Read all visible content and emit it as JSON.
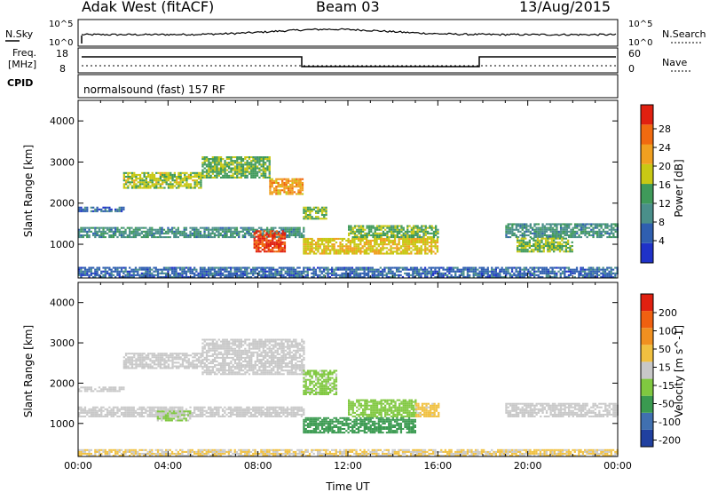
{
  "header": {
    "station": "Adak West (fitACF)",
    "beam": "Beam 03",
    "date": "13/Aug/2015"
  },
  "noise_panel": {
    "left_label": "N.Sky",
    "right_label": "N.Search",
    "left_ticks": [
      "10^5",
      "10^0"
    ],
    "right_ticks": [
      "10^5",
      "10^0"
    ]
  },
  "freq_panel": {
    "left_label_line1": "Freq.",
    "left_label_line2": "[MHz]",
    "left_ticks": [
      "18",
      "8"
    ],
    "right_label": "Nave",
    "right_ticks": [
      "60",
      "0"
    ]
  },
  "cpid": {
    "label": "CPID",
    "value": "normalsound (fast) 157 RF"
  },
  "colors": {
    "power_scale": [
      "#1f32c8",
      "#2f5fb0",
      "#4a8f8a",
      "#3f9a5a",
      "#c8c814",
      "#f0a020",
      "#f06a10",
      "#e02010"
    ],
    "velocity_scale": [
      "#2040a0",
      "#4070b0",
      "#3a9a50",
      "#80c840",
      "#c8c8c8",
      "#f0c040",
      "#f09020",
      "#f06010",
      "#e02010"
    ]
  },
  "chart_data": [
    {
      "type": "heatmap",
      "name": "power",
      "ylabel": "Slant Range [km]",
      "xlabel": "",
      "xlim": [
        0,
        24
      ],
      "ylim": [
        180,
        4500
      ],
      "y_ticks": [
        "1000",
        "2000",
        "3000",
        "4000"
      ],
      "colorbar_label": "Power [dB]",
      "colorbar_ticks": [
        "28",
        "24",
        "20",
        "16",
        "12",
        "8",
        "4"
      ],
      "colorbar_range": [
        0,
        30
      ],
      "echo_regions": [
        {
          "t0": 0.0,
          "t1": 10.0,
          "r0": 1150,
          "r1": 1400,
          "value": 10
        },
        {
          "t0": 0.0,
          "t1": 2.0,
          "r0": 1780,
          "r1": 1900,
          "value": 6
        },
        {
          "t0": 2.0,
          "t1": 5.5,
          "r0": 2350,
          "r1": 2750,
          "value": 16
        },
        {
          "t0": 5.5,
          "t1": 8.5,
          "r0": 2600,
          "r1": 3100,
          "value": 14
        },
        {
          "t0": 8.5,
          "t1": 10.0,
          "r0": 2200,
          "r1": 2600,
          "value": 21
        },
        {
          "t0": 7.8,
          "t1": 9.2,
          "r0": 800,
          "r1": 1300,
          "value": 27
        },
        {
          "t0": 10.0,
          "t1": 16.0,
          "r0": 750,
          "r1": 1150,
          "value": 18
        },
        {
          "t0": 12.0,
          "t1": 16.0,
          "r0": 1150,
          "r1": 1450,
          "value": 14
        },
        {
          "t0": 10.0,
          "t1": 11.0,
          "r0": 1600,
          "r1": 1900,
          "value": 15
        },
        {
          "t0": 19.0,
          "t1": 24.0,
          "r0": 1150,
          "r1": 1500,
          "value": 10
        },
        {
          "t0": 19.5,
          "t1": 22.0,
          "r0": 800,
          "r1": 1150,
          "value": 15
        },
        {
          "t0": 0.0,
          "t1": 24.0,
          "r0": 180,
          "r1": 450,
          "value": 6
        }
      ]
    },
    {
      "type": "heatmap",
      "name": "velocity",
      "ylabel": "Slant Range [km]",
      "xlabel": "Time UT",
      "xlim": [
        0,
        24
      ],
      "ylim": [
        180,
        4500
      ],
      "x_ticks": [
        "00:00",
        "04:00",
        "08:00",
        "12:00",
        "16:00",
        "20:00",
        "00:00"
      ],
      "y_ticks": [
        "1000",
        "2000",
        "3000",
        "4000"
      ],
      "colorbar_label": "Velocity [m s^-1]",
      "colorbar_ticks": [
        "200",
        "100",
        "50",
        "15",
        "-15",
        "-50",
        "-100",
        "-200"
      ],
      "colorbar_range": [
        -250,
        250
      ],
      "echo_regions": [
        {
          "t0": 0.0,
          "t1": 10.0,
          "r0": 1150,
          "r1": 1400,
          "value": 0
        },
        {
          "t0": 0.0,
          "t1": 2.0,
          "r0": 1780,
          "r1": 1900,
          "value": 0
        },
        {
          "t0": 2.0,
          "t1": 5.5,
          "r0": 2350,
          "r1": 2750,
          "value": 0
        },
        {
          "t0": 5.5,
          "t1": 10.0,
          "r0": 2200,
          "r1": 3100,
          "value": 0
        },
        {
          "t0": 3.5,
          "t1": 5.0,
          "r0": 1050,
          "r1": 1300,
          "value": -30
        },
        {
          "t0": 10.0,
          "t1": 15.0,
          "r0": 750,
          "r1": 1150,
          "value": -120
        },
        {
          "t0": 12.0,
          "t1": 15.0,
          "r0": 1150,
          "r1": 1600,
          "value": -60
        },
        {
          "t0": 15.0,
          "t1": 16.0,
          "r0": 1150,
          "r1": 1500,
          "value": 40
        },
        {
          "t0": 10.0,
          "t1": 11.5,
          "r0": 1700,
          "r1": 2300,
          "value": -40
        },
        {
          "t0": 19.0,
          "t1": 24.0,
          "r0": 1150,
          "r1": 1500,
          "value": 0
        },
        {
          "t0": 0.0,
          "t1": 24.0,
          "r0": 180,
          "r1": 350,
          "value": 30
        }
      ]
    }
  ]
}
